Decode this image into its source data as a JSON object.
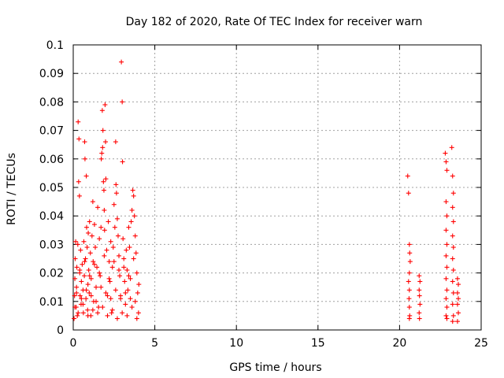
{
  "chart_data": {
    "type": "scatter",
    "title": "Day 182 of 2020, Rate Of TEC Index for receiver warn",
    "xlabel": "GPS time / hours",
    "ylabel": "ROTI / TECUs",
    "xlim": [
      0,
      25
    ],
    "ylim": [
      0,
      0.1
    ],
    "xticks": [
      0,
      5,
      10,
      15,
      20,
      25
    ],
    "xtick_labels": [
      "0",
      "5",
      "10",
      "15",
      "20",
      "25"
    ],
    "yticks": [
      0,
      0.01,
      0.02,
      0.03,
      0.04,
      0.05,
      0.06,
      0.07,
      0.08,
      0.09,
      0.1
    ],
    "ytick_labels": [
      "0",
      "0.01",
      "0.02",
      "0.03",
      "0.04",
      "0.05",
      "0.06",
      "0.07",
      "0.08",
      "0.09",
      "0.1"
    ],
    "grid": true,
    "marker": "plus",
    "color": "#ff0000",
    "series": [
      {
        "points": [
          [
            0.05,
            0.004
          ],
          [
            0.08,
            0.012
          ],
          [
            0.1,
            0.018
          ],
          [
            0.12,
            0.025
          ],
          [
            0.15,
            0.031
          ],
          [
            0.18,
            0.008
          ],
          [
            0.2,
            0.015
          ],
          [
            0.22,
            0.022
          ],
          [
            0.25,
            0.005
          ],
          [
            0.28,
            0.03
          ],
          [
            0.3,
            0.073
          ],
          [
            0.33,
            0.052
          ],
          [
            0.35,
            0.067
          ],
          [
            0.38,
            0.047
          ],
          [
            0.4,
            0.02
          ],
          [
            0.42,
            0.012
          ],
          [
            0.45,
            0.028
          ],
          [
            0.48,
            0.009
          ],
          [
            0.5,
            0.017
          ],
          [
            0.55,
            0.023
          ],
          [
            0.6,
            0.014
          ],
          [
            0.62,
            0.006
          ],
          [
            0.65,
            0.031
          ],
          [
            0.68,
            0.019
          ],
          [
            0.7,
            0.066
          ],
          [
            0.72,
            0.06
          ],
          [
            0.75,
            0.025
          ],
          [
            0.78,
            0.011
          ],
          [
            0.8,
            0.054
          ],
          [
            0.82,
            0.036
          ],
          [
            0.85,
            0.029
          ],
          [
            0.88,
            0.007
          ],
          [
            0.9,
            0.016
          ],
          [
            0.92,
            0.034
          ],
          [
            0.95,
            0.021
          ],
          [
            0.98,
            0.013
          ],
          [
            1.0,
            0.038
          ],
          [
            1.05,
            0.027
          ],
          [
            1.08,
            0.005
          ],
          [
            1.1,
            0.018
          ],
          [
            1.15,
            0.033
          ],
          [
            1.2,
            0.045
          ],
          [
            1.22,
            0.024
          ],
          [
            1.25,
            0.01
          ],
          [
            1.3,
            0.037
          ],
          [
            1.35,
            0.029
          ],
          [
            1.4,
            0.015
          ],
          [
            1.45,
            0.022
          ],
          [
            1.5,
            0.043
          ],
          [
            1.55,
            0.008
          ],
          [
            1.6,
            0.032
          ],
          [
            1.65,
            0.019
          ],
          [
            1.7,
            0.036
          ],
          [
            1.72,
            0.06
          ],
          [
            1.75,
            0.062
          ],
          [
            1.78,
            0.077
          ],
          [
            1.8,
            0.064
          ],
          [
            1.82,
            0.07
          ],
          [
            1.85,
            0.052
          ],
          [
            1.88,
            0.049
          ],
          [
            1.9,
            0.042
          ],
          [
            1.92,
            0.035
          ],
          [
            1.95,
            0.079
          ],
          [
            1.98,
            0.066
          ],
          [
            2.0,
            0.053
          ],
          [
            2.05,
            0.028
          ],
          [
            2.1,
            0.012
          ],
          [
            2.15,
            0.038
          ],
          [
            2.2,
            0.024
          ],
          [
            2.25,
            0.017
          ],
          [
            2.3,
            0.031
          ],
          [
            2.35,
            0.006
          ],
          [
            2.4,
            0.022
          ],
          [
            2.45,
            0.029
          ],
          [
            2.5,
            0.044
          ],
          [
            2.55,
            0.036
          ],
          [
            2.6,
            0.066
          ],
          [
            2.62,
            0.051
          ],
          [
            2.65,
            0.048
          ],
          [
            2.7,
            0.039
          ],
          [
            2.75,
            0.033
          ],
          [
            2.8,
            0.026
          ],
          [
            2.85,
            0.019
          ],
          [
            2.9,
            0.011
          ],
          [
            2.95,
            0.094
          ],
          [
            3.0,
            0.08
          ],
          [
            3.02,
            0.059
          ],
          [
            3.05,
            0.032
          ],
          [
            3.1,
            0.025
          ],
          [
            3.15,
            0.017
          ],
          [
            3.2,
            0.009
          ],
          [
            3.25,
            0.028
          ],
          [
            3.3,
            0.021
          ],
          [
            3.35,
            0.014
          ],
          [
            3.4,
            0.036
          ],
          [
            3.45,
            0.029
          ],
          [
            3.5,
            0.018
          ],
          [
            3.55,
            0.038
          ],
          [
            3.6,
            0.042
          ],
          [
            3.65,
            0.049
          ],
          [
            3.7,
            0.047
          ],
          [
            3.75,
            0.04
          ],
          [
            3.8,
            0.033
          ],
          [
            3.85,
            0.027
          ],
          [
            3.9,
            0.02
          ],
          [
            3.95,
            0.013
          ],
          [
            4.0,
            0.006
          ],
          [
            4.02,
            0.016
          ],
          [
            0.1,
            0.008
          ],
          [
            0.3,
            0.006
          ],
          [
            0.6,
            0.009
          ],
          [
            0.9,
            0.005
          ],
          [
            1.2,
            0.007
          ],
          [
            1.5,
            0.006
          ],
          [
            1.8,
            0.008
          ],
          [
            2.1,
            0.005
          ],
          [
            2.4,
            0.007
          ],
          [
            2.7,
            0.004
          ],
          [
            3.0,
            0.006
          ],
          [
            3.3,
            0.005
          ],
          [
            3.6,
            0.008
          ],
          [
            3.9,
            0.004
          ],
          [
            0.2,
            0.013
          ],
          [
            0.5,
            0.011
          ],
          [
            0.8,
            0.014
          ],
          [
            1.1,
            0.012
          ],
          [
            1.4,
            0.01
          ],
          [
            1.7,
            0.015
          ],
          [
            2.0,
            0.013
          ],
          [
            2.3,
            0.011
          ],
          [
            2.6,
            0.014
          ],
          [
            2.9,
            0.012
          ],
          [
            3.2,
            0.013
          ],
          [
            3.5,
            0.011
          ],
          [
            3.8,
            0.01
          ],
          [
            0.4,
            0.021
          ],
          [
            1.0,
            0.019
          ],
          [
            1.6,
            0.02
          ],
          [
            2.2,
            0.018
          ],
          [
            2.8,
            0.021
          ],
          [
            3.4,
            0.019
          ],
          [
            0.7,
            0.024
          ],
          [
            1.3,
            0.023
          ],
          [
            1.9,
            0.026
          ],
          [
            2.5,
            0.024
          ],
          [
            3.1,
            0.022
          ],
          [
            3.7,
            0.025
          ],
          [
            20.5,
            0.054
          ],
          [
            20.55,
            0.048
          ],
          [
            20.6,
            0.03
          ],
          [
            20.62,
            0.027
          ],
          [
            20.65,
            0.024
          ],
          [
            20.6,
            0.02
          ],
          [
            20.55,
            0.017
          ],
          [
            20.6,
            0.014
          ],
          [
            20.58,
            0.011
          ],
          [
            20.6,
            0.008
          ],
          [
            20.62,
            0.005
          ],
          [
            20.6,
            0.004
          ],
          [
            21.2,
            0.019
          ],
          [
            21.25,
            0.017
          ],
          [
            21.2,
            0.014
          ],
          [
            21.22,
            0.012
          ],
          [
            21.25,
            0.009
          ],
          [
            21.2,
            0.006
          ],
          [
            21.22,
            0.004
          ],
          [
            22.8,
            0.062
          ],
          [
            22.85,
            0.059
          ],
          [
            22.9,
            0.056
          ],
          [
            22.85,
            0.045
          ],
          [
            22.9,
            0.04
          ],
          [
            22.85,
            0.035
          ],
          [
            22.9,
            0.03
          ],
          [
            22.85,
            0.026
          ],
          [
            22.9,
            0.022
          ],
          [
            22.85,
            0.018
          ],
          [
            22.9,
            0.014
          ],
          [
            22.85,
            0.011
          ],
          [
            22.9,
            0.008
          ],
          [
            22.85,
            0.005
          ],
          [
            22.9,
            0.004
          ],
          [
            23.2,
            0.064
          ],
          [
            23.25,
            0.054
          ],
          [
            23.3,
            0.048
          ],
          [
            23.25,
            0.043
          ],
          [
            23.3,
            0.038
          ],
          [
            23.25,
            0.033
          ],
          [
            23.3,
            0.029
          ],
          [
            23.25,
            0.025
          ],
          [
            23.3,
            0.021
          ],
          [
            23.25,
            0.017
          ],
          [
            23.3,
            0.013
          ],
          [
            23.25,
            0.009
          ],
          [
            23.3,
            0.005
          ],
          [
            23.25,
            0.003
          ],
          [
            23.55,
            0.018
          ],
          [
            23.6,
            0.016
          ],
          [
            23.55,
            0.013
          ],
          [
            23.6,
            0.011
          ],
          [
            23.55,
            0.009
          ],
          [
            23.6,
            0.006
          ],
          [
            23.55,
            0.003
          ]
        ]
      }
    ]
  }
}
